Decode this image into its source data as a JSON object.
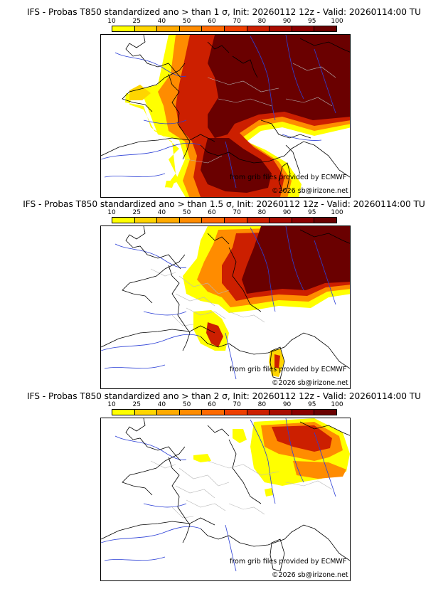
{
  "colors": {
    "scale": [
      "#ffff00",
      "#ffd500",
      "#ffaa00",
      "#ff8c00",
      "#ff6a00",
      "#ee3f00",
      "#cc1f00",
      "#a80c00",
      "#8a0000",
      "#6a0000"
    ],
    "river": "#2b3fd6",
    "border": "#000000",
    "admin": "#b8b8b8"
  },
  "colorbar": {
    "ticks": [
      "10",
      "25",
      "40",
      "50",
      "60",
      "70",
      "80",
      "90",
      "95",
      "100"
    ]
  },
  "panels": [
    {
      "title": "IFS - Probas T850  standardized ano > than 1 σ, Init: 20260112 12z - Valid: 20260114:00 TU",
      "credit_source": "from grib files provided by ECMWF",
      "credit_copyright": "©2026 sb@irizone.net",
      "threshold_sigma": 1
    },
    {
      "title": "IFS - Probas T850  standardized ano > than 1.5 σ, Init: 20260112 12z - Valid: 20260114:00 TU",
      "credit_source": "from grib files provided by ECMWF",
      "credit_copyright": "©2026 sb@irizone.net",
      "threshold_sigma": 1.5
    },
    {
      "title": "IFS - Probas T850  standardized ano > than 2 σ, Init: 20260112 12z - Valid: 20260114:00 TU",
      "credit_source": "from grib files provided by ECMWF",
      "credit_copyright": "©2026 sb@irizone.net",
      "threshold_sigma": 2
    }
  ]
}
